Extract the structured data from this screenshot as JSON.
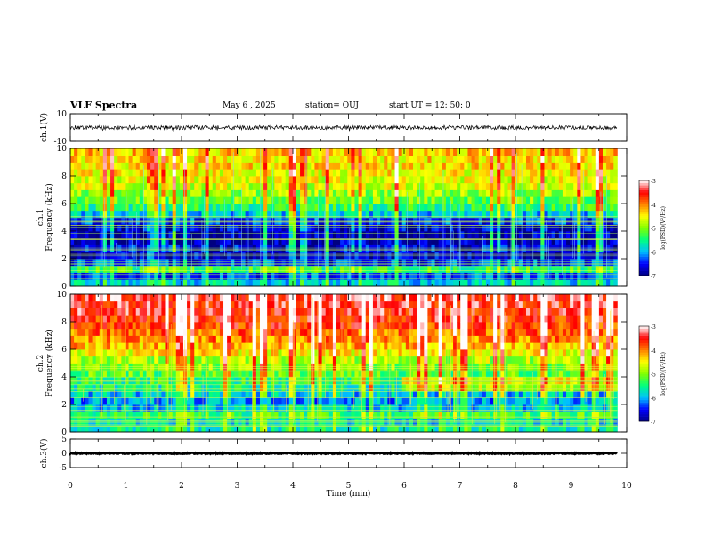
{
  "header": {
    "title": "VLF Spectra",
    "date": "May 6 , 2025",
    "station": "station= OUJ",
    "start": "start UT = 12: 50: 0"
  },
  "colorbar_label": "log(PSD)(V²/Hz)",
  "colorbar_ticks": [
    "-3",
    "-4",
    "-5",
    "-6",
    "-7"
  ],
  "colorscale": [
    "#000080",
    "#0000ff",
    "#00bfff",
    "#00ff80",
    "#80ff00",
    "#ffff00",
    "#ff8000",
    "#ff0000",
    "#ffffff"
  ],
  "chart_data": [
    {
      "type": "line",
      "name": "waveform-ch1",
      "ylabel": "ch.1(V)",
      "ylim": [
        -10,
        10
      ],
      "y_ticks": [
        "10",
        "-10"
      ],
      "xlim": [
        0,
        10
      ],
      "trace_level_v": 0,
      "trace_amplitude_v": 1.5
    },
    {
      "type": "heatmap",
      "name": "spectrogram-ch1",
      "ylabel": "ch.1",
      "ylabel2": "Frequency (kHz)",
      "ylim": [
        0,
        10
      ],
      "y_ticks": [
        "10",
        "8",
        "6",
        "4",
        "2",
        "0"
      ],
      "xlim": [
        0,
        9.83
      ],
      "color_range": [
        -7,
        -3
      ],
      "profile": [
        {
          "f": 0.25,
          "psd": -5.8
        },
        {
          "f": 0.75,
          "psd": -6.3
        },
        {
          "f": 1.25,
          "psd": -5.3
        },
        {
          "f": 1.75,
          "psd": -6.4
        },
        {
          "f": 2.25,
          "psd": -6.7
        },
        {
          "f": 2.75,
          "psd": -6.6
        },
        {
          "f": 3.25,
          "psd": -6.8
        },
        {
          "f": 3.75,
          "psd": -6.8
        },
        {
          "f": 4.25,
          "psd": -6.7
        },
        {
          "f": 4.75,
          "psd": -6.4
        },
        {
          "f": 5.25,
          "psd": -5.9
        },
        {
          "f": 5.75,
          "psd": -5.4
        },
        {
          "f": 6.25,
          "psd": -5.1
        },
        {
          "f": 6.75,
          "psd": -4.9
        },
        {
          "f": 7.25,
          "psd": -4.7
        },
        {
          "f": 7.75,
          "psd": -4.6
        },
        {
          "f": 8.25,
          "psd": -4.5
        },
        {
          "f": 8.75,
          "psd": -4.4
        },
        {
          "f": 9.25,
          "psd": -4.4
        },
        {
          "f": 9.75,
          "psd": -4.3
        }
      ]
    },
    {
      "type": "heatmap",
      "name": "spectrogram-ch2",
      "ylabel": "ch.2",
      "ylabel2": "Frequency (kHz)",
      "ylim": [
        0,
        10
      ],
      "y_ticks": [
        "10",
        "8",
        "6",
        "4",
        "2",
        "0"
      ],
      "xlim": [
        0,
        9.83
      ],
      "color_range": [
        -7,
        -3
      ],
      "profile": [
        {
          "f": 0.25,
          "psd": -5.6
        },
        {
          "f": 0.75,
          "psd": -5.8
        },
        {
          "f": 1.25,
          "psd": -5.3
        },
        {
          "f": 1.75,
          "psd": -5.9
        },
        {
          "f": 2.25,
          "psd": -6.1
        },
        {
          "f": 2.75,
          "psd": -5.9
        },
        {
          "f": 3.25,
          "psd": -5.6
        },
        {
          "f": 3.75,
          "psd": -5.4
        },
        {
          "f": 4.25,
          "psd": -5.2
        },
        {
          "f": 4.75,
          "psd": -5.0
        },
        {
          "f": 5.25,
          "psd": -4.8
        },
        {
          "f": 5.75,
          "psd": -4.5
        },
        {
          "f": 6.25,
          "psd": -4.2
        },
        {
          "f": 6.75,
          "psd": -4.0
        },
        {
          "f": 7.25,
          "psd": -3.9
        },
        {
          "f": 7.75,
          "psd": -3.7
        },
        {
          "f": 8.25,
          "psd": -3.6
        },
        {
          "f": 8.75,
          "psd": -3.5
        },
        {
          "f": 9.25,
          "psd": -3.5
        },
        {
          "f": 9.75,
          "psd": -3.4
        }
      ]
    },
    {
      "type": "line",
      "name": "waveform-ch3",
      "ylabel": "ch.3(V)",
      "ylim": [
        -5,
        5
      ],
      "y_ticks": [
        "5",
        "0",
        "-5"
      ],
      "xlim": [
        0,
        10
      ],
      "trace_level_v": 0,
      "trace_amplitude_v": 0.2
    }
  ],
  "x_axis": {
    "label": "Time (min)",
    "ticks": [
      "0",
      "1",
      "2",
      "3",
      "4",
      "5",
      "6",
      "7",
      "8",
      "9",
      "10"
    ],
    "range": [
      0,
      10
    ]
  }
}
